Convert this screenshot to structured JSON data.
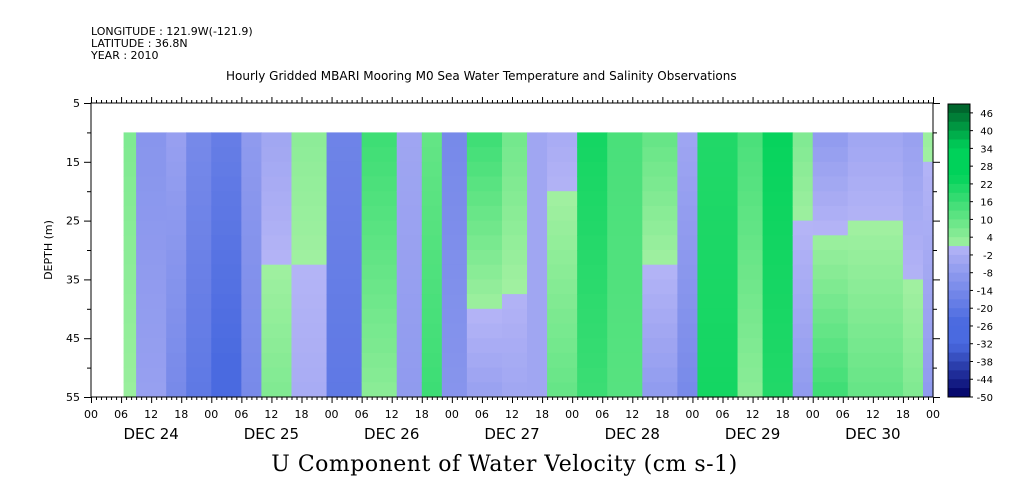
{
  "header": {
    "longitude": "LONGITUDE : 121.9W(-121.9)",
    "latitude": "LATITUDE : 36.8N",
    "year": "YEAR : 2010"
  },
  "title": "Hourly Gridded MBARI Mooring M0 Sea Water Temperature and Salinity Observations",
  "bottom_title": "U Component of Water Velocity (cm s-1)",
  "chart_data": {
    "type": "heatmap",
    "ylabel": "DEPTH (m)",
    "y_range": [
      5,
      55
    ],
    "y_inverted": true,
    "y_ticks": [
      5,
      15,
      25,
      35,
      45,
      55
    ],
    "x_range_hours": [
      0,
      168
    ],
    "x_hour_ticks": [
      "00",
      "06",
      "12",
      "18",
      "00",
      "06",
      "12",
      "18",
      "00",
      "06",
      "12",
      "18",
      "00",
      "06",
      "12",
      "18",
      "00",
      "06",
      "12",
      "18",
      "00",
      "06",
      "12",
      "18",
      "00",
      "06",
      "12",
      "18",
      "00"
    ],
    "day_labels": [
      "DEC 24",
      "DEC 25",
      "DEC 26",
      "DEC 27",
      "DEC 28",
      "DEC 29",
      "DEC 30"
    ],
    "data_depth_range": [
      10,
      55
    ],
    "data_start_hour": 6.5,
    "data_end_hour": 168,
    "colorbar": {
      "labels": [
        "46",
        "40",
        "34",
        "28",
        "22",
        "16",
        "10",
        "4",
        "-2",
        "-8",
        "-14",
        "-20",
        "-26",
        "-32",
        "-38",
        "-44",
        "-50"
      ],
      "min": -50,
      "max": 49,
      "step": 3
    },
    "colors": {
      "strong_positive": "#005a28",
      "positive": "#00d25a",
      "weak_positive": "#a0f0a0",
      "weak_negative": "#b4b4f6",
      "negative": "#4a6ae0",
      "strong_negative": "#000064"
    },
    "velocity_segments": [
      {
        "start_hour": 6,
        "end_hour": 9,
        "surface": 6,
        "bottom": 2
      },
      {
        "start_hour": 9,
        "end_hour": 15,
        "surface": -10,
        "bottom": -6
      },
      {
        "start_hour": 15,
        "end_hour": 19,
        "surface": -6,
        "bottom": -14
      },
      {
        "start_hour": 19,
        "end_hour": 24,
        "surface": -14,
        "bottom": -20
      },
      {
        "start_hour": 24,
        "end_hour": 30,
        "surface": -18,
        "bottom": -26
      },
      {
        "start_hour": 30,
        "end_hour": 34,
        "surface": -8,
        "bottom": -14
      },
      {
        "start_hour": 34,
        "end_hour": 40,
        "surface": -4,
        "bottom": 6
      },
      {
        "start_hour": 40,
        "end_hour": 47,
        "surface": 4,
        "bottom": -2
      },
      {
        "start_hour": 47,
        "end_hour": 54,
        "surface": -16,
        "bottom": -20
      },
      {
        "start_hour": 54,
        "end_hour": 61,
        "surface": 16,
        "bottom": 4
      },
      {
        "start_hour": 61,
        "end_hour": 66,
        "surface": -4,
        "bottom": -8
      },
      {
        "start_hour": 66,
        "end_hour": 70,
        "surface": 10,
        "bottom": 16
      },
      {
        "start_hour": 70,
        "end_hour": 75,
        "surface": -14,
        "bottom": -10
      },
      {
        "start_hour": 75,
        "end_hour": 82,
        "surface": 16,
        "bottom": -6
      },
      {
        "start_hour": 82,
        "end_hour": 87,
        "surface": 8,
        "bottom": -4
      },
      {
        "start_hour": 87,
        "end_hour": 91,
        "surface": -4,
        "bottom": -4
      },
      {
        "start_hour": 91,
        "end_hour": 97,
        "surface": -2,
        "bottom": 10
      },
      {
        "start_hour": 97,
        "end_hour": 103,
        "surface": 22,
        "bottom": 16
      },
      {
        "start_hour": 103,
        "end_hour": 110,
        "surface": 14,
        "bottom": 12
      },
      {
        "start_hour": 110,
        "end_hour": 117,
        "surface": 10,
        "bottom": -8
      },
      {
        "start_hour": 117,
        "end_hour": 121,
        "surface": -4,
        "bottom": -14
      },
      {
        "start_hour": 121,
        "end_hour": 129,
        "surface": 20,
        "bottom": 22
      },
      {
        "start_hour": 129,
        "end_hour": 134,
        "surface": 14,
        "bottom": 4
      },
      {
        "start_hour": 134,
        "end_hour": 140,
        "surface": 24,
        "bottom": 20
      },
      {
        "start_hour": 140,
        "end_hour": 144,
        "surface": 6,
        "bottom": -8
      },
      {
        "start_hour": 144,
        "end_hour": 151,
        "surface": -8,
        "bottom": 16
      },
      {
        "start_hour": 151,
        "end_hour": 162,
        "surface": -4,
        "bottom": 10
      },
      {
        "start_hour": 162,
        "end_hour": 166,
        "surface": -6,
        "bottom": 6
      },
      {
        "start_hour": 166,
        "end_hour": 168,
        "surface": 2,
        "bottom": -8
      }
    ]
  }
}
